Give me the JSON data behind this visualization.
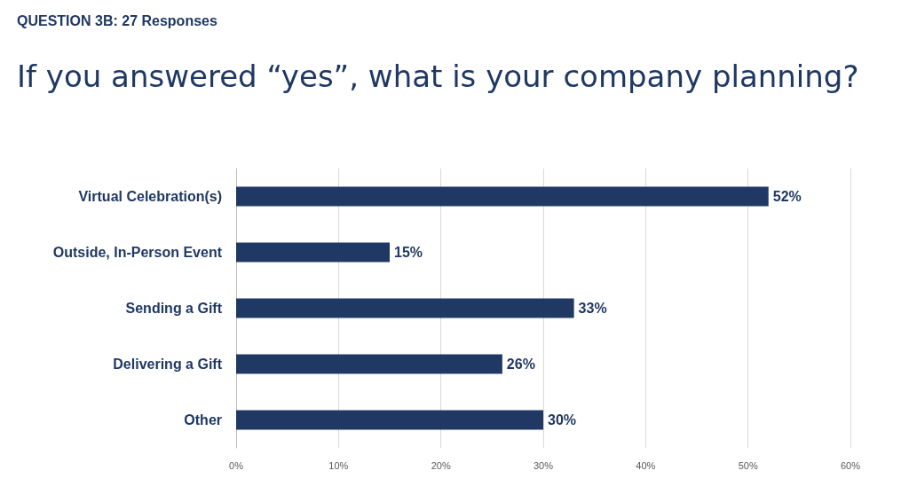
{
  "chart_data": {
    "type": "bar",
    "orientation": "horizontal",
    "title": "If you answered “yes”, what is your company planning?",
    "subtitle": "QUESTION 3B: 27 Responses",
    "categories": [
      "Virtual Celebration(s)",
      "Outside, In-Person Event",
      "Sending a Gift",
      "Delivering a Gift",
      "Other"
    ],
    "values": [
      52,
      15,
      33,
      26,
      30
    ],
    "color": "#1f3864",
    "value_labels": [
      "52%",
      "15%",
      "33%",
      "26%",
      "30%"
    ],
    "xlim": [
      0,
      60
    ],
    "xticks": [
      {
        "value": 0,
        "label": "0%"
      },
      {
        "value": 10,
        "label": "10%"
      },
      {
        "value": 20,
        "label": "20%"
      },
      {
        "value": 30,
        "label": "30%"
      },
      {
        "value": 40,
        "label": "40%"
      },
      {
        "value": 50,
        "label": "50%"
      },
      {
        "value": 60,
        "label": "60%"
      }
    ],
    "grid": "x"
  }
}
